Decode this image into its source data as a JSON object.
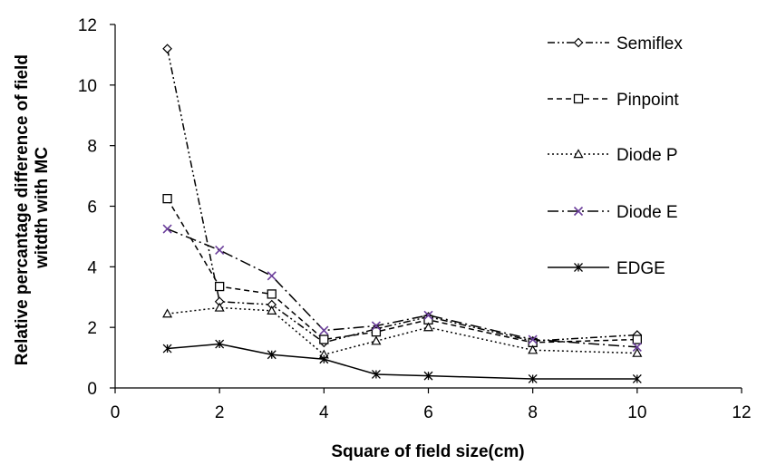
{
  "chart_data": {
    "type": "line",
    "title": "",
    "xlabel": "Square of field size(cm)",
    "ylabel_lines": [
      "Relative percantage difference of field",
      "witdth with MC"
    ],
    "xlim": [
      0,
      12
    ],
    "ylim": [
      0,
      12
    ],
    "xticks": [
      0,
      2,
      4,
      6,
      8,
      10,
      12
    ],
    "yticks": [
      0,
      2,
      4,
      6,
      8,
      10,
      12
    ],
    "grid": false,
    "legend_position": "right",
    "x": [
      1,
      2,
      3,
      4,
      5,
      6,
      8,
      10
    ],
    "series": [
      {
        "name": "Semiflex",
        "marker": "diamond",
        "dash": "dash-dot-dot",
        "color": "#000000",
        "values": [
          11.2,
          2.85,
          2.75,
          1.5,
          1.95,
          2.35,
          1.55,
          1.75
        ]
      },
      {
        "name": "Pinpoint",
        "marker": "square",
        "dash": "dashed",
        "color": "#000000",
        "values": [
          6.25,
          3.35,
          3.1,
          1.6,
          1.85,
          2.25,
          1.5,
          1.6
        ]
      },
      {
        "name": "Diode P",
        "marker": "triangle",
        "dash": "dotted",
        "color": "#000000",
        "values": [
          2.45,
          2.65,
          2.55,
          1.1,
          1.55,
          2.0,
          1.25,
          1.15
        ]
      },
      {
        "name": "Diode E",
        "marker": "x",
        "dash": "long-dash-dot",
        "color": "#000000",
        "marker_color": "#6a3d9a",
        "values": [
          5.25,
          4.55,
          3.7,
          1.9,
          2.05,
          2.4,
          1.6,
          1.35
        ]
      },
      {
        "name": "EDGE",
        "marker": "star",
        "dash": "solid",
        "color": "#000000",
        "values": [
          1.3,
          1.45,
          1.1,
          0.95,
          0.45,
          0.4,
          0.3,
          0.3
        ]
      }
    ]
  }
}
